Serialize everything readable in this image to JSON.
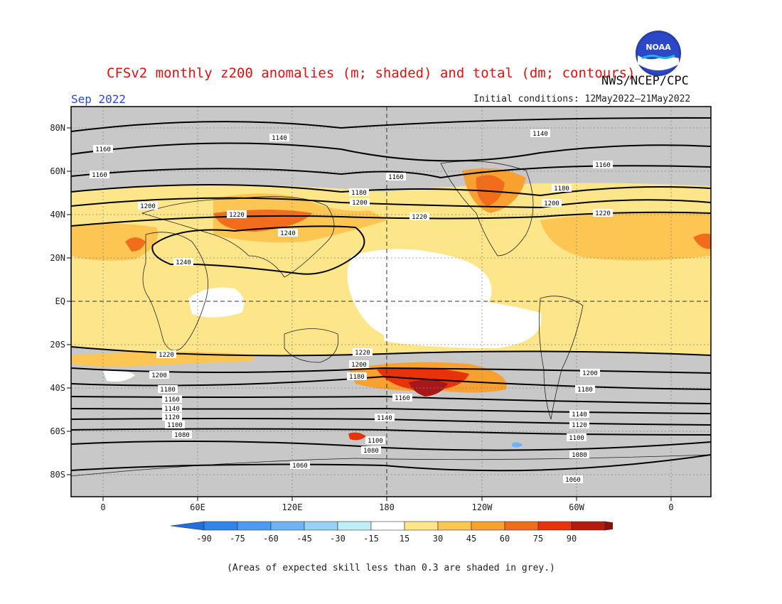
{
  "title": "CFSv2 monthly z200 anomalies (m; shaded) and total (dm; contours)",
  "month": "Sep 2022",
  "initial_conditions": "Initial conditions: 12May2022–21May2022",
  "agency": "NWS/NCEP/CPC",
  "logo_text": "NOAA",
  "note": "(Areas of expected skill less than 0.3 are shaded in grey.)",
  "lat_labels": [
    "80N",
    "60N",
    "40N",
    "20N",
    "EQ",
    "20S",
    "40S",
    "60S",
    "80S"
  ],
  "lon_labels": [
    "0",
    "60E",
    "120E",
    "180",
    "120W",
    "60W",
    "0"
  ],
  "colorbar": {
    "labels": [
      "-90",
      "-75",
      "-60",
      "-45",
      "-30",
      "-15",
      "15",
      "30",
      "45",
      "60",
      "75",
      "90"
    ],
    "colors": [
      "#1f6fe0",
      "#2f85ea",
      "#4b9bf0",
      "#6eb3f5",
      "#97d1f8",
      "#bfeef6",
      "#ffffff",
      "#fde68a",
      "#fdc653",
      "#f8a131",
      "#f26d1b",
      "#e8320c",
      "#b51a0a",
      "#8b0f0d"
    ]
  },
  "colors": {
    "grey_mask": "#c8c8c8",
    "title": "#e01010",
    "month": "#2848d8",
    "light_yellow": "#fde68a",
    "yellow_orange": "#fdc653",
    "orange": "#f8a131",
    "orange_red": "#f26d1b",
    "red": "#e8320c",
    "dark_red": "#a81818"
  },
  "contour_labels": [
    "1140",
    "1140",
    "1160",
    "1160",
    "1160",
    "1160",
    "1180",
    "1180",
    "1200",
    "1200",
    "1200",
    "1220",
    "1220",
    "1220",
    "1240",
    "1240",
    "1220",
    "1220",
    "1200",
    "1200",
    "1200",
    "1180",
    "1180",
    "1180",
    "1160",
    "1160",
    "1140",
    "1140",
    "1140",
    "1120",
    "1120",
    "1100",
    "1100",
    "1100",
    "1080",
    "1080",
    "1080",
    "1060",
    "1060"
  ]
}
